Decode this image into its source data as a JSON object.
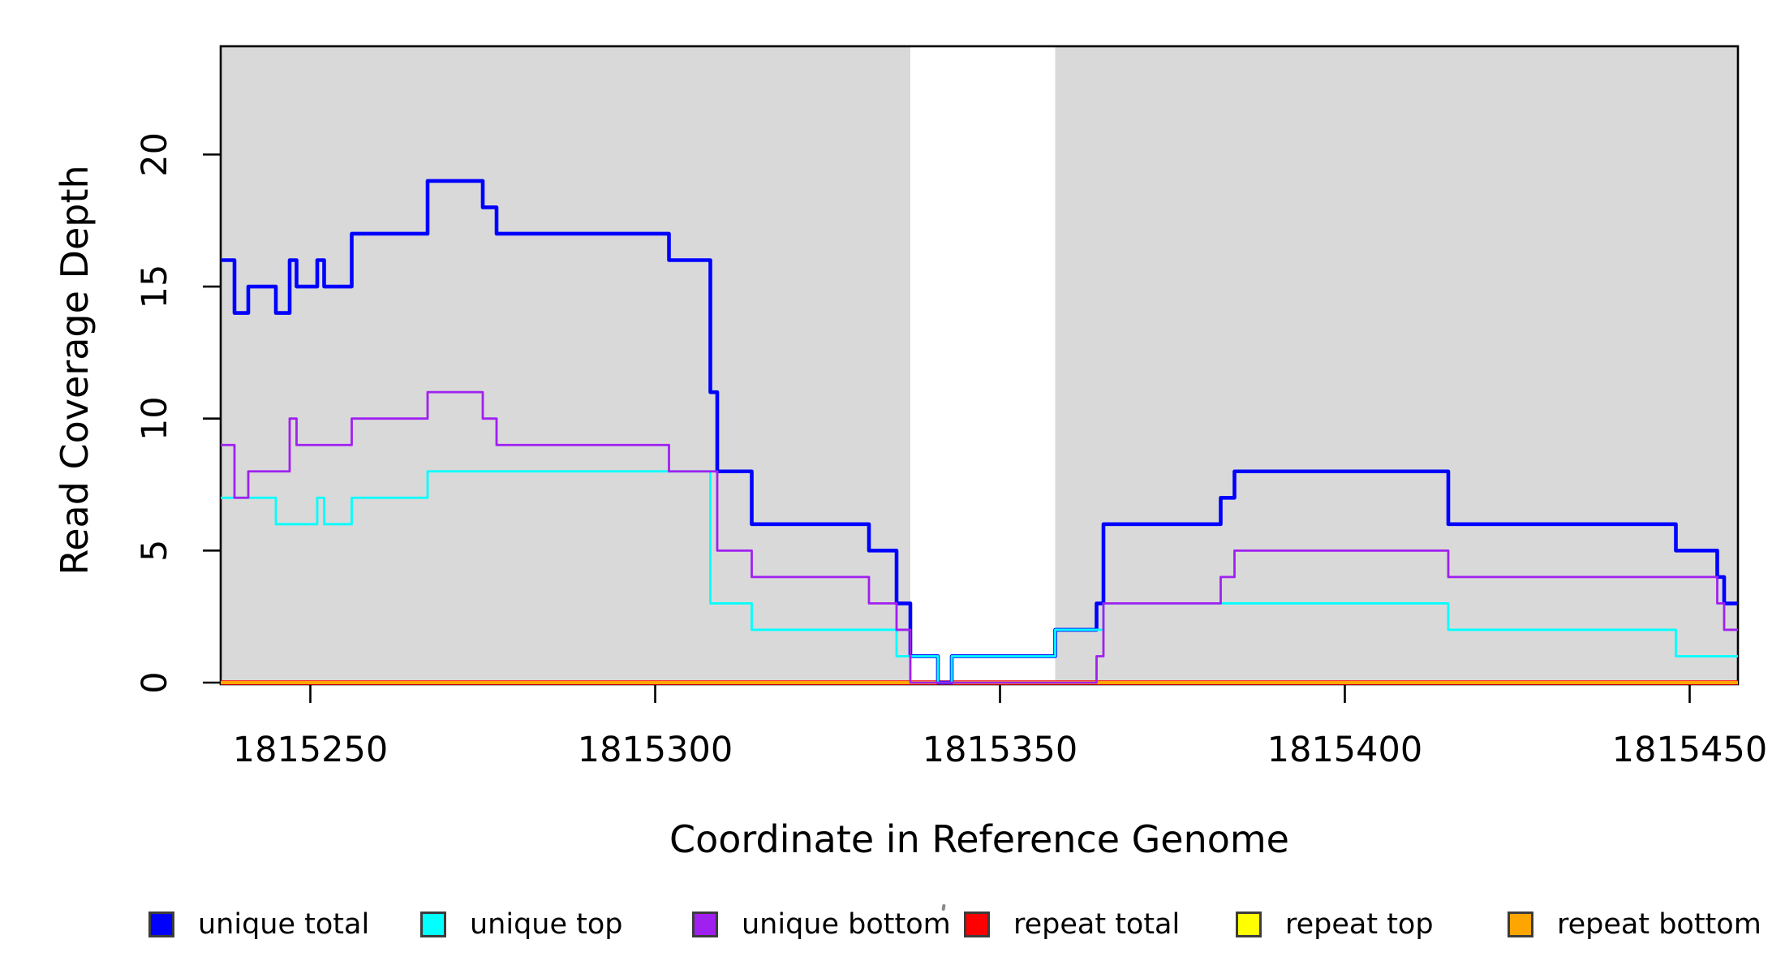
{
  "chart_data": {
    "type": "line",
    "subtype": "step-coverage-plot",
    "title": "",
    "xlabel": "Coordinate in Reference Genome",
    "ylabel": "Read Coverage Depth",
    "x_ticks": [
      1815250,
      1815300,
      1815350,
      1815400,
      1815450
    ],
    "y_ticks": [
      0,
      5,
      10,
      15,
      20
    ],
    "xlim": [
      1815237,
      1815457
    ],
    "ylim": [
      0,
      24.1
    ],
    "grid": false,
    "background_color": "#ffffff",
    "region_fill": "#d9d9d9",
    "shaded_unique_regions": [
      [
        1815237,
        1815337
      ],
      [
        1815358,
        1815457
      ]
    ],
    "white_gap_region": [
      1815337,
      1815358
    ],
    "series": [
      {
        "name": "repeat total",
        "color": "#ff0000",
        "width": 5.5,
        "steps": [
          [
            1815237,
            0
          ]
        ]
      },
      {
        "name": "repeat top",
        "color": "#ffff00",
        "width": 2.5,
        "steps": [
          [
            1815237,
            0
          ]
        ]
      },
      {
        "name": "repeat bottom",
        "color": "#ffa500",
        "width": 4,
        "steps": [
          [
            1815237,
            0
          ]
        ]
      },
      {
        "name": "unique total",
        "color": "#0000ff",
        "width": 4.6,
        "steps": [
          [
            1815237,
            16
          ],
          [
            1815239,
            14
          ],
          [
            1815241,
            15
          ],
          [
            1815245,
            14
          ],
          [
            1815247,
            16
          ],
          [
            1815248,
            15
          ],
          [
            1815251,
            16
          ],
          [
            1815252,
            15
          ],
          [
            1815256,
            17
          ],
          [
            1815267,
            19
          ],
          [
            1815275,
            18
          ],
          [
            1815277,
            17
          ],
          [
            1815302,
            16
          ],
          [
            1815308,
            11
          ],
          [
            1815309,
            8
          ],
          [
            1815314,
            6
          ],
          [
            1815331,
            5
          ],
          [
            1815335,
            3
          ],
          [
            1815337,
            1
          ],
          [
            1815341,
            0
          ],
          [
            1815343,
            1
          ],
          [
            1815358,
            2
          ],
          [
            1815364,
            3
          ],
          [
            1815365,
            6
          ],
          [
            1815382,
            7
          ],
          [
            1815384,
            8
          ],
          [
            1815415,
            6
          ],
          [
            1815448,
            5
          ],
          [
            1815454,
            4
          ],
          [
            1815455,
            3
          ]
        ]
      },
      {
        "name": "unique top",
        "color": "#00ffff",
        "width": 2.8,
        "steps": [
          [
            1815237,
            7
          ],
          [
            1815245,
            6
          ],
          [
            1815251,
            7
          ],
          [
            1815252,
            6
          ],
          [
            1815256,
            7
          ],
          [
            1815267,
            8
          ],
          [
            1815308,
            3
          ],
          [
            1815314,
            2
          ],
          [
            1815335,
            1
          ],
          [
            1815341,
            0
          ],
          [
            1815343,
            1
          ],
          [
            1815358,
            2
          ],
          [
            1815365,
            3
          ],
          [
            1815415,
            2
          ],
          [
            1815448,
            1
          ]
        ]
      },
      {
        "name": "unique bottom",
        "color": "#a020f0",
        "width": 2.8,
        "steps": [
          [
            1815237,
            9
          ],
          [
            1815239,
            7
          ],
          [
            1815241,
            8
          ],
          [
            1815247,
            10
          ],
          [
            1815248,
            9
          ],
          [
            1815256,
            10
          ],
          [
            1815267,
            11
          ],
          [
            1815275,
            10
          ],
          [
            1815277,
            9
          ],
          [
            1815302,
            8
          ],
          [
            1815309,
            5
          ],
          [
            1815314,
            4
          ],
          [
            1815331,
            3
          ],
          [
            1815335,
            2
          ],
          [
            1815337,
            0
          ],
          [
            1815364,
            1
          ],
          [
            1815365,
            3
          ],
          [
            1815382,
            4
          ],
          [
            1815384,
            5
          ],
          [
            1815415,
            4
          ],
          [
            1815454,
            3
          ],
          [
            1815455,
            2
          ]
        ]
      }
    ],
    "legend_position": "bottom",
    "legend": [
      {
        "label": "unique total",
        "color": "#0000ff"
      },
      {
        "label": "unique top",
        "color": "#00ffff"
      },
      {
        "label": "unique bottom",
        "color": "#a020f0"
      },
      {
        "label": "repeat total",
        "color": "#ff0000"
      },
      {
        "label": "repeat top",
        "color": "#ffff00"
      },
      {
        "label": "repeat bottom",
        "color": "#ffa500"
      }
    ]
  }
}
